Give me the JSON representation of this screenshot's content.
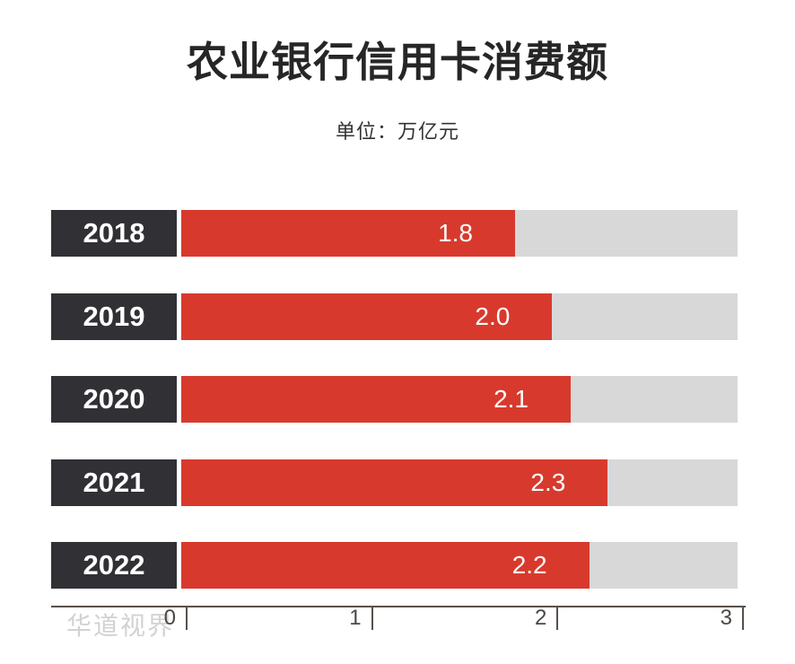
{
  "title": "农业银行信用卡消费额",
  "subtitle": "单位：万亿元",
  "watermark": "华道视界",
  "colors": {
    "bar_fill": "#d73a2d",
    "bar_track": "#d8d8d8",
    "year_label_box": "#313035",
    "title_text": "#262626",
    "subtitle_text": "#333333",
    "axis": "#57504b",
    "tick_label": "#4c4742",
    "watermark": "#d2d2d2",
    "value_text": "#ffffff",
    "background": "#ffffff"
  },
  "chart_data": {
    "type": "bar",
    "orientation": "horizontal",
    "title": "农业银行信用卡消费额",
    "subtitle": "单位：万亿元",
    "categories": [
      "2018",
      "2019",
      "2020",
      "2021",
      "2022"
    ],
    "values": [
      1.8,
      2.0,
      2.1,
      2.3,
      2.2
    ],
    "value_labels": [
      "1.8",
      "2.0",
      "2.1",
      "2.3",
      "2.2"
    ],
    "xlim": [
      0,
      3
    ],
    "x_ticks": [
      "0",
      "1",
      "2",
      "3"
    ],
    "grid": false,
    "legend": "none",
    "value_label_position": "inside-right"
  }
}
